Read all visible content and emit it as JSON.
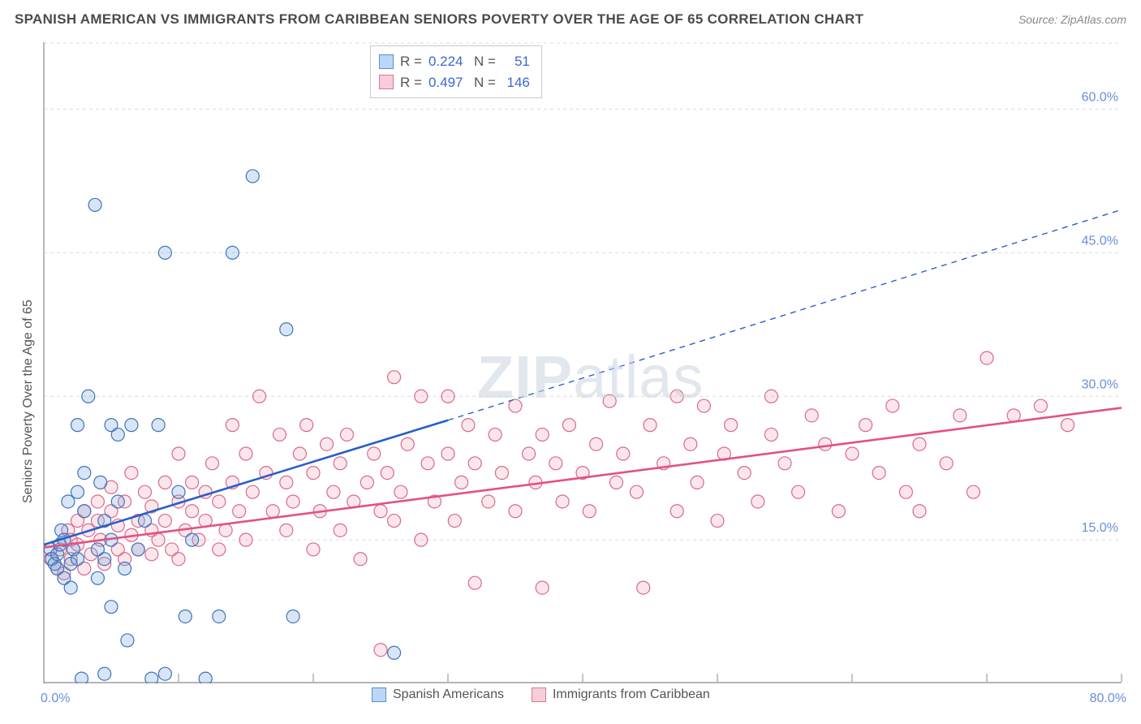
{
  "title": "SPANISH AMERICAN VS IMMIGRANTS FROM CARIBBEAN SENIORS POVERTY OVER THE AGE OF 65 CORRELATION CHART",
  "source": "Source: ZipAtlas.com",
  "watermark": {
    "bold": "ZIP",
    "rest": "atlas"
  },
  "y_axis_title": "Seniors Poverty Over the Age of 65",
  "chart": {
    "type": "scatter",
    "background_color": "#ffffff",
    "grid_color": "#dcdcdc",
    "axis_line_color": "#888888",
    "x_range": [
      0,
      80
    ],
    "y_range": [
      0,
      67
    ],
    "x_ticks": [
      0,
      10,
      20,
      30,
      40,
      50,
      60,
      70,
      80
    ],
    "y_gridlines": [
      15,
      30,
      45,
      60
    ],
    "x_labels": {
      "start": "0.0%",
      "end": "80.0%"
    },
    "y_labels": [
      "15.0%",
      "30.0%",
      "45.0%",
      "60.0%"
    ],
    "label_color": "#6b8fd9",
    "label_fontsize": 16,
    "marker_radius": 8,
    "marker_stroke_width": 1.2,
    "marker_fill_opacity": 0.28,
    "trend_line_width": 2.6
  },
  "series": [
    {
      "id": "spanish",
      "label": "Spanish Americans",
      "color": "#6fa3e0",
      "stroke": "#3f74b8",
      "line_color": "#2a5fc7",
      "r_value": "0.224",
      "n_value": "51",
      "trend": {
        "x1": 0,
        "y1": 14.5,
        "x2": 30,
        "y2": 27.5,
        "dash_to_x": 80,
        "dash_to_y": 49.5
      },
      "points": [
        [
          0.5,
          14
        ],
        [
          0.6,
          13
        ],
        [
          0.8,
          12.5
        ],
        [
          1,
          12
        ],
        [
          1,
          13.5
        ],
        [
          1.2,
          14.5
        ],
        [
          1.3,
          16
        ],
        [
          1.5,
          11
        ],
        [
          1.5,
          15
        ],
        [
          1.8,
          19
        ],
        [
          2,
          10
        ],
        [
          2,
          12.5
        ],
        [
          2.2,
          14
        ],
        [
          2.5,
          13
        ],
        [
          2.5,
          20
        ],
        [
          2.5,
          27
        ],
        [
          3,
          18
        ],
        [
          3,
          22
        ],
        [
          3.3,
          30
        ],
        [
          3.8,
          50
        ],
        [
          4,
          11
        ],
        [
          4,
          14
        ],
        [
          4.2,
          21
        ],
        [
          4.5,
          13
        ],
        [
          4.5,
          17
        ],
        [
          5,
          8
        ],
        [
          5,
          15
        ],
        [
          5,
          27
        ],
        [
          5.5,
          19
        ],
        [
          5.5,
          26
        ],
        [
          6,
          12
        ],
        [
          6.2,
          4.5
        ],
        [
          6.5,
          27
        ],
        [
          7,
          14
        ],
        [
          7.5,
          17
        ],
        [
          8,
          0.5
        ],
        [
          8.5,
          27
        ],
        [
          9,
          45
        ],
        [
          9,
          1
        ],
        [
          10,
          20
        ],
        [
          10.5,
          7
        ],
        [
          11,
          15
        ],
        [
          12,
          0.5
        ],
        [
          13,
          7
        ],
        [
          14,
          45
        ],
        [
          15.5,
          53
        ],
        [
          18,
          37
        ],
        [
          18.5,
          7
        ],
        [
          26,
          3.2
        ],
        [
          2.8,
          0.5
        ],
        [
          4.5,
          1
        ]
      ]
    },
    {
      "id": "caribbean",
      "label": "Immigrants from Caribbean",
      "color": "#f2a6ba",
      "stroke": "#d96a8a",
      "line_color": "#e35182",
      "r_value": "0.497",
      "n_value": "146",
      "trend": {
        "x1": 0,
        "y1": 14.2,
        "x2": 80,
        "y2": 28.8
      },
      "points": [
        [
          0.5,
          13
        ],
        [
          1,
          12
        ],
        [
          1.2,
          14
        ],
        [
          1.5,
          11.5
        ],
        [
          1.8,
          16
        ],
        [
          2,
          13
        ],
        [
          2,
          15
        ],
        [
          2.5,
          14.5
        ],
        [
          2.5,
          17
        ],
        [
          3,
          12
        ],
        [
          3,
          18
        ],
        [
          3.3,
          16
        ],
        [
          3.5,
          13.5
        ],
        [
          4,
          17
        ],
        [
          4,
          19
        ],
        [
          4.2,
          15
        ],
        [
          4.5,
          12.5
        ],
        [
          5,
          18
        ],
        [
          5,
          20.5
        ],
        [
          5.5,
          14
        ],
        [
          5.5,
          16.5
        ],
        [
          6,
          13
        ],
        [
          6,
          19
        ],
        [
          6.5,
          15.5
        ],
        [
          6.5,
          22
        ],
        [
          7,
          14
        ],
        [
          7,
          17
        ],
        [
          7.5,
          20
        ],
        [
          8,
          13.5
        ],
        [
          8,
          16
        ],
        [
          8,
          18.5
        ],
        [
          8.5,
          15
        ],
        [
          9,
          17
        ],
        [
          9,
          21
        ],
        [
          9.5,
          14
        ],
        [
          10,
          13
        ],
        [
          10,
          19
        ],
        [
          10,
          24
        ],
        [
          10.5,
          16
        ],
        [
          11,
          18
        ],
        [
          11,
          21
        ],
        [
          11.5,
          15
        ],
        [
          12,
          17
        ],
        [
          12,
          20
        ],
        [
          12.5,
          23
        ],
        [
          13,
          14
        ],
        [
          13,
          19
        ],
        [
          13.5,
          16
        ],
        [
          14,
          21
        ],
        [
          14,
          27
        ],
        [
          14.5,
          18
        ],
        [
          15,
          15
        ],
        [
          15,
          24
        ],
        [
          15.5,
          20
        ],
        [
          16,
          30
        ],
        [
          16.5,
          22
        ],
        [
          17,
          18
        ],
        [
          17.5,
          26
        ],
        [
          18,
          16
        ],
        [
          18,
          21
        ],
        [
          18.5,
          19
        ],
        [
          19,
          24
        ],
        [
          19.5,
          27
        ],
        [
          20,
          14
        ],
        [
          20,
          22
        ],
        [
          20.5,
          18
        ],
        [
          21,
          25
        ],
        [
          21.5,
          20
        ],
        [
          22,
          16
        ],
        [
          22,
          23
        ],
        [
          22.5,
          26
        ],
        [
          23,
          19
        ],
        [
          23.5,
          13
        ],
        [
          24,
          21
        ],
        [
          24.5,
          24
        ],
        [
          25,
          3.5
        ],
        [
          25,
          18
        ],
        [
          25.5,
          22
        ],
        [
          26,
          17
        ],
        [
          26,
          32
        ],
        [
          26.5,
          20
        ],
        [
          27,
          25
        ],
        [
          28,
          15
        ],
        [
          28,
          30
        ],
        [
          28.5,
          23
        ],
        [
          29,
          19
        ],
        [
          30,
          24
        ],
        [
          30,
          30
        ],
        [
          30.5,
          17
        ],
        [
          31,
          21
        ],
        [
          31.5,
          27
        ],
        [
          32,
          10.5
        ],
        [
          32,
          23
        ],
        [
          33,
          19
        ],
        [
          33.5,
          26
        ],
        [
          34,
          22
        ],
        [
          35,
          18
        ],
        [
          35,
          29
        ],
        [
          36,
          24
        ],
        [
          36.5,
          21
        ],
        [
          37,
          10
        ],
        [
          37,
          26
        ],
        [
          38,
          23
        ],
        [
          38.5,
          19
        ],
        [
          39,
          27
        ],
        [
          40,
          22
        ],
        [
          40.5,
          18
        ],
        [
          41,
          25
        ],
        [
          42,
          29.5
        ],
        [
          42.5,
          21
        ],
        [
          43,
          24
        ],
        [
          44,
          20
        ],
        [
          44.5,
          10
        ],
        [
          45,
          27
        ],
        [
          46,
          23
        ],
        [
          47,
          18
        ],
        [
          47,
          30
        ],
        [
          48,
          25
        ],
        [
          48.5,
          21
        ],
        [
          49,
          29
        ],
        [
          50,
          17
        ],
        [
          50.5,
          24
        ],
        [
          51,
          27
        ],
        [
          52,
          22
        ],
        [
          53,
          19
        ],
        [
          54,
          26
        ],
        [
          54,
          30
        ],
        [
          55,
          23
        ],
        [
          56,
          20
        ],
        [
          57,
          28
        ],
        [
          58,
          25
        ],
        [
          59,
          18
        ],
        [
          60,
          24
        ],
        [
          61,
          27
        ],
        [
          62,
          22
        ],
        [
          63,
          29
        ],
        [
          64,
          20
        ],
        [
          65,
          25
        ],
        [
          65,
          18
        ],
        [
          67,
          23
        ],
        [
          68,
          28
        ],
        [
          69,
          20
        ],
        [
          70,
          34
        ],
        [
          72,
          28
        ],
        [
          74,
          29
        ],
        [
          76,
          27
        ]
      ]
    }
  ],
  "stats_box": {
    "r_label": "R =",
    "n_label": "N ="
  },
  "legend_swatch": {
    "blue_fill": "#bcd7f5",
    "blue_stroke": "#5a8dd6",
    "pink_fill": "#f7cdd8",
    "pink_stroke": "#d97797"
  }
}
